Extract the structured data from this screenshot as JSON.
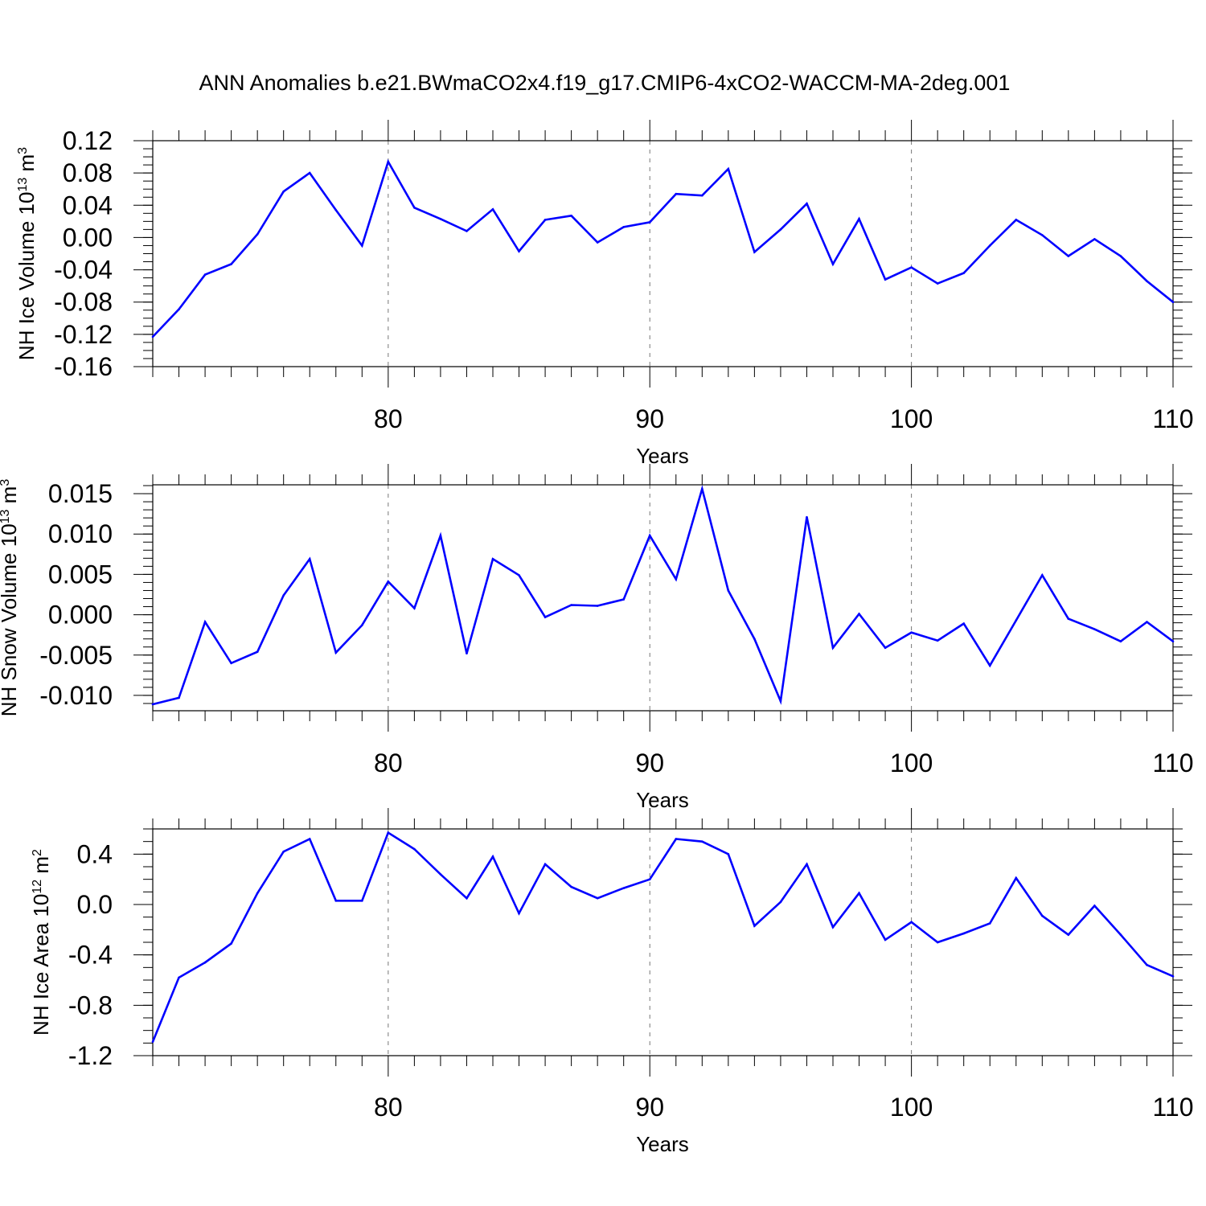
{
  "figure": {
    "title": "ANN Anomalies b.e21.BWmaCO2x4.f19_g17.CMIP6-4xCO2-WACCM-MA-2deg.001"
  },
  "style": {
    "line_color": "#0000ff",
    "axis_color": "#000000",
    "grid_color": "#777777"
  },
  "chart_data": [
    {
      "type": "line",
      "name": "NH Ice Volume",
      "ylabel": "NH Ice Volume 10",
      "ylabel_exp": "13",
      "ylabel_unit": " m",
      "ylabel_unit_exp": "3",
      "xlabel": "Years",
      "xlim": [
        71,
        110
      ],
      "ylim": [
        -0.16,
        0.12
      ],
      "yticks": [
        -0.16,
        -0.12,
        -0.08,
        -0.04,
        0.0,
        0.04,
        0.08,
        0.12
      ],
      "ytick_labels": [
        "-0.16",
        "-0.12",
        "-0.08",
        "-0.04",
        "0.00",
        "0.04",
        "0.08",
        "0.12"
      ],
      "yminor_step": 0.01,
      "xticks": [
        80,
        90,
        100,
        110
      ],
      "xtick_labels": [
        "80",
        "90",
        "100",
        "110"
      ],
      "x": [
        71,
        72,
        73,
        74,
        75,
        76,
        77,
        78,
        79,
        80,
        81,
        82,
        83,
        84,
        85,
        86,
        87,
        88,
        89,
        90,
        91,
        92,
        93,
        94,
        95,
        96,
        97,
        98,
        99,
        100,
        101,
        102,
        103,
        104,
        105,
        106,
        107,
        108,
        109,
        110
      ],
      "values": [
        -0.123,
        -0.089,
        -0.046,
        -0.033,
        0.004,
        0.057,
        0.08,
        0.034,
        -0.01,
        0.094,
        0.037,
        0.023,
        0.008,
        0.035,
        -0.017,
        0.022,
        0.027,
        -0.006,
        0.013,
        0.019,
        0.054,
        0.052,
        0.085,
        -0.018,
        0.01,
        0.042,
        -0.033,
        0.023,
        -0.052,
        -0.037,
        -0.057,
        -0.044,
        -0.01,
        0.022,
        0.003,
        -0.023,
        -0.002,
        -0.023,
        -0.054,
        -0.08
      ]
    },
    {
      "type": "line",
      "name": "NH Snow Volume",
      "ylabel": "NH Snow Volume 10",
      "ylabel_exp": "13",
      "ylabel_unit": " m",
      "ylabel_unit_exp": "3",
      "xlabel": "Years",
      "xlim": [
        71,
        110
      ],
      "ylim": [
        -0.0119,
        0.0161
      ],
      "yticks": [
        -0.01,
        -0.005,
        0.0,
        0.005,
        0.01,
        0.015
      ],
      "ytick_labels": [
        "-0.010",
        "-0.005",
        "0.000",
        "0.005",
        "0.010",
        "0.015"
      ],
      "yminor_step": 0.001,
      "xticks": [
        80,
        90,
        100,
        110
      ],
      "xtick_labels": [
        "80",
        "90",
        "100",
        "110"
      ],
      "x": [
        71,
        72,
        73,
        74,
        75,
        76,
        77,
        78,
        79,
        80,
        81,
        82,
        83,
        84,
        85,
        86,
        87,
        88,
        89,
        90,
        91,
        92,
        93,
        94,
        95,
        96,
        97,
        98,
        99,
        100,
        101,
        102,
        103,
        104,
        105,
        106,
        107,
        108,
        109,
        110
      ],
      "values": [
        -0.0111,
        -0.0103,
        -0.0009,
        -0.006,
        -0.0046,
        0.0024,
        0.0069,
        -0.0047,
        -0.0013,
        0.0041,
        0.0008,
        0.0098,
        -0.0048,
        0.0069,
        0.0049,
        -0.0003,
        0.0012,
        0.0011,
        0.0019,
        0.0098,
        0.0044,
        0.0156,
        0.003,
        -0.003,
        -0.0107,
        0.0121,
        -0.0041,
        0.0001,
        -0.0041,
        -0.0022,
        -0.0032,
        -0.0011,
        -0.0063,
        -0.0007,
        0.0049,
        -0.0005,
        -0.0018,
        -0.0033,
        -0.0009,
        -0.0033
      ]
    },
    {
      "type": "line",
      "name": "NH Ice Area",
      "ylabel": "NH Ice Area 10",
      "ylabel_exp": "12",
      "ylabel_unit": " m",
      "ylabel_unit_exp": "2",
      "xlabel": "Years",
      "xlim": [
        71,
        110
      ],
      "ylim": [
        -1.2,
        0.6
      ],
      "yticks": [
        -1.2,
        -0.8,
        -0.4,
        0.0,
        0.4
      ],
      "ytick_labels": [
        "-1.2",
        "-0.8",
        "-0.4",
        "0.0",
        "0.4"
      ],
      "yminor_step": 0.1,
      "xticks": [
        80,
        90,
        100,
        110
      ],
      "xtick_labels": [
        "80",
        "90",
        "100",
        "110"
      ],
      "x": [
        71,
        72,
        73,
        74,
        75,
        76,
        77,
        78,
        79,
        80,
        81,
        82,
        83,
        84,
        85,
        86,
        87,
        88,
        89,
        90,
        91,
        92,
        93,
        94,
        95,
        96,
        97,
        98,
        99,
        100,
        101,
        102,
        103,
        104,
        105,
        106,
        107,
        108,
        109,
        110
      ],
      "values": [
        -1.09,
        -0.58,
        -0.46,
        -0.31,
        0.09,
        0.42,
        0.52,
        0.03,
        0.03,
        0.57,
        0.44,
        0.24,
        0.05,
        0.38,
        -0.07,
        0.32,
        0.14,
        0.05,
        0.13,
        0.2,
        0.52,
        0.5,
        0.4,
        -0.17,
        0.02,
        0.32,
        -0.18,
        0.09,
        -0.28,
        -0.14,
        -0.3,
        -0.23,
        -0.15,
        0.21,
        -0.09,
        -0.24,
        -0.01,
        -0.24,
        -0.48,
        -0.57
      ]
    }
  ]
}
